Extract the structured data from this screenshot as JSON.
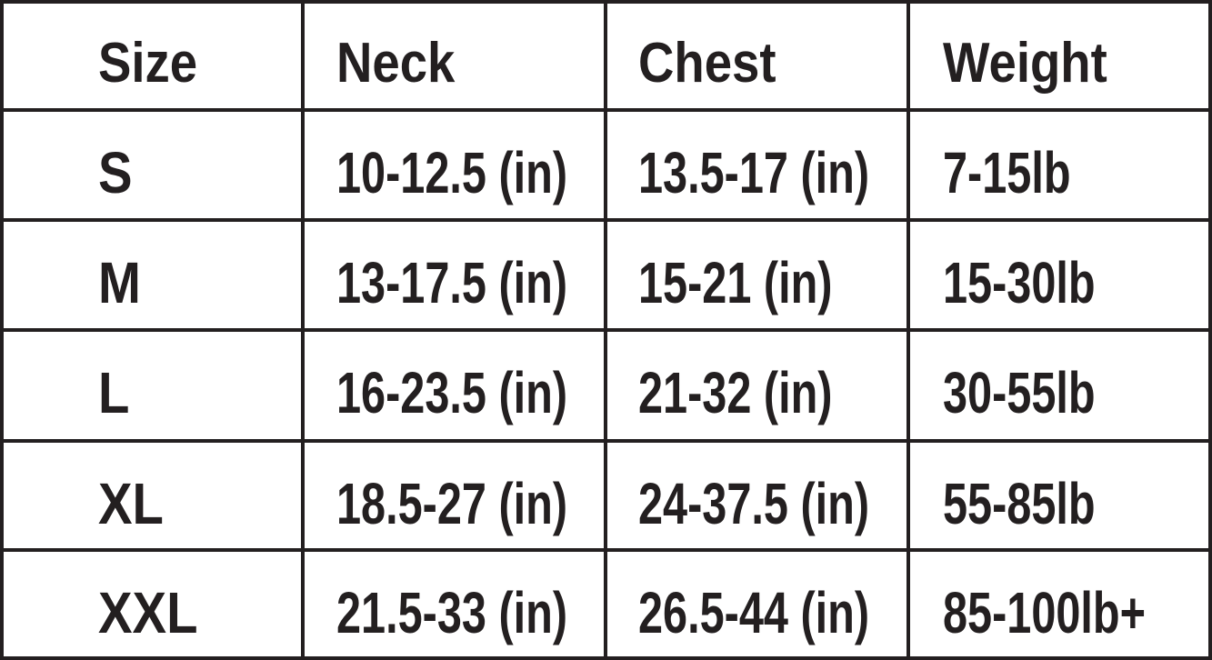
{
  "table": {
    "header": [
      "Size",
      "Neck",
      "Chest",
      "Weight"
    ],
    "rows": [
      [
        "S",
        "10-12.5 (in)",
        "13.5-17 (in)",
        "7-15lb"
      ],
      [
        "M",
        "13-17.5 (in)",
        "15-21 (in)",
        "15-30lb"
      ],
      [
        "L",
        "16-23.5 (in)",
        "21-32 (in)",
        "30-55lb"
      ],
      [
        "XL",
        "18.5-27 (in)",
        "24-37.5 (in)",
        "55-85lb"
      ],
      [
        "XXL",
        "21.5-33 (in)",
        "26.5-44 (in)",
        "85-100lb+"
      ]
    ]
  }
}
